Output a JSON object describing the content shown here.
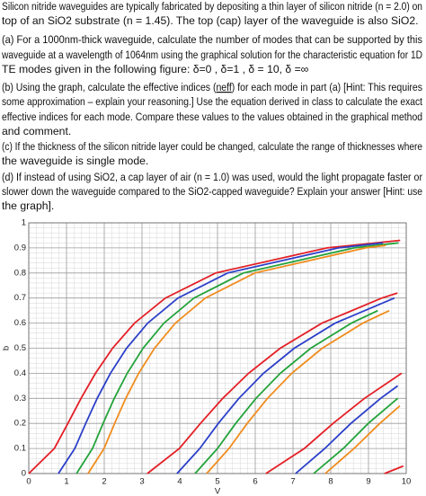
{
  "intro": [
    "Silicon nitride waveguides are typically fabricated by depositing a thin layer of silicon nitride (n = 2.0) on",
    "top of an SiO2 substrate (n = 1.45). The top (cap) layer of the waveguide is also SiO2."
  ],
  "part_a": [
    " (a)  For a 1000nm-thick waveguide, calculate the number of modes that can be supported by this",
    "waveguide at a wavelength of 1064nm using the graphical solution for the characteristic equation for 1D",
    "TE modes given in the following figure: δ=0 ,  δ=1 ,  δ = 10,  δ =∞"
  ],
  "part_b": [
    [
      "(b) Using the graph, calculate the effective indices (",
      "neff",
      ") for each mode in part (a) [Hint: This requires"
    ],
    "some approximation – explain your reasoning.] Use the equation derived in class to calculate the exact",
    "effective indices for each mode. Compare these values to the values obtained in the graphical method",
    "and comment."
  ],
  "part_c": [
    " (c) If the thickness of the silicon nitride layer could be changed, calculate the range of thicknesses where",
    "the waveguide is single mode."
  ],
  "part_d": [
    " (d) If instead of using SiO2, a cap layer of air (n = 1.0) was used, would the light propagate faster or",
    "slower down the waveguide compared to the SiO2-capped waveguide? Explain your answer [Hint: use",
    "the graph]."
  ],
  "chart_data": {
    "type": "line",
    "x_label": "V",
    "y_label": "b",
    "xlim": [
      0,
      10
    ],
    "xticks": [
      0,
      1,
      2,
      3,
      4,
      5,
      6,
      7,
      8,
      9,
      10
    ],
    "ylim": [
      0,
      1
    ],
    "yticks": [
      0,
      0.1,
      0.2,
      0.3,
      0.4,
      0.5,
      0.6,
      0.7,
      0.8,
      0.9,
      1
    ],
    "grid": true,
    "series": [
      {
        "color": "#e41f26",
        "x": [
          0,
          0.678,
          1.037,
          1.385,
          1.768,
          2.221,
          2.802,
          3.62,
          4.951,
          7.9,
          9.84
        ],
        "values": [
          0,
          0.1,
          0.2,
          0.3,
          0.4,
          0.5,
          0.6,
          0.7,
          0.8,
          0.9,
          0.93
        ]
      },
      {
        "color": "#2b3fc9",
        "x": [
          0.785,
          1.22,
          1.509,
          1.813,
          2.164,
          2.592,
          3.151,
          3.952,
          5.268,
          8.204,
          9.385
        ],
        "values": [
          0,
          0.1,
          0.2,
          0.3,
          0.4,
          0.5,
          0.6,
          0.7,
          0.8,
          0.9,
          0.92
        ]
      },
      {
        "color": "#23a33a",
        "x": [
          1.265,
          1.689,
          1.969,
          2.266,
          2.608,
          3.028,
          3.581,
          4.375,
          5.686,
          8.616,
          9.795
        ],
        "values": [
          0,
          0.1,
          0.2,
          0.3,
          0.4,
          0.5,
          0.6,
          0.7,
          0.8,
          0.9,
          0.92
        ]
      },
      {
        "color": "#f08c1e",
        "x": [
          1.571,
          1.995,
          2.275,
          2.57,
          2.912,
          3.332,
          3.884,
          4.678,
          5.988,
          8.918,
          9.457
        ],
        "values": [
          0,
          0.1,
          0.2,
          0.3,
          0.4,
          0.5,
          0.6,
          0.7,
          0.8,
          0.9,
          0.91
        ]
      },
      {
        "color": "#e41f26",
        "x": [
          3.142,
          3.99,
          4.549,
          5.14,
          5.824,
          6.664,
          7.769,
          9.355,
          9.767
        ],
        "values": [
          0,
          0.1,
          0.2,
          0.3,
          0.4,
          0.5,
          0.6,
          0.7,
          0.72
        ]
      },
      {
        "color": "#2b3fc9",
        "x": [
          3.927,
          4.531,
          5.022,
          5.568,
          6.219,
          7.035,
          8.118,
          9.688
        ],
        "values": [
          0,
          0.1,
          0.2,
          0.3,
          0.4,
          0.5,
          0.6,
          0.7
        ]
      },
      {
        "color": "#23a33a",
        "x": [
          4.406,
          5.001,
          5.482,
          6.02,
          6.664,
          7.471,
          8.548,
          9.247
        ],
        "values": [
          0,
          0.1,
          0.2,
          0.3,
          0.4,
          0.5,
          0.6,
          0.65
        ]
      },
      {
        "color": "#f08c1e",
        "x": [
          4.712,
          5.306,
          5.787,
          6.325,
          6.968,
          7.775,
          8.851,
          9.551
        ],
        "values": [
          0,
          0.1,
          0.2,
          0.3,
          0.4,
          0.5,
          0.6,
          0.65
        ]
      },
      {
        "color": "#e41f26",
        "x": [
          6.283,
          7.301,
          8.062,
          8.895,
          9.879
        ],
        "values": [
          0,
          0.1,
          0.2,
          0.3,
          0.4
        ]
      },
      {
        "color": "#2b3fc9",
        "x": [
          7.069,
          7.843,
          8.534,
          9.323,
          9.775
        ],
        "values": [
          0,
          0.1,
          0.2,
          0.3,
          0.35
        ]
      },
      {
        "color": "#23a33a",
        "x": [
          7.548,
          8.333,
          8.994,
          9.775
        ],
        "values": [
          0,
          0.1,
          0.2,
          0.3
        ]
      },
      {
        "color": "#f08c1e",
        "x": [
          7.854,
          8.618,
          9.3,
          9.832
        ],
        "values": [
          0,
          0.1,
          0.2,
          0.27
        ]
      },
      {
        "color": "#e41f26",
        "x": [
          9.425,
          9.923
        ],
        "values": [
          0,
          0.03
        ]
      }
    ]
  }
}
